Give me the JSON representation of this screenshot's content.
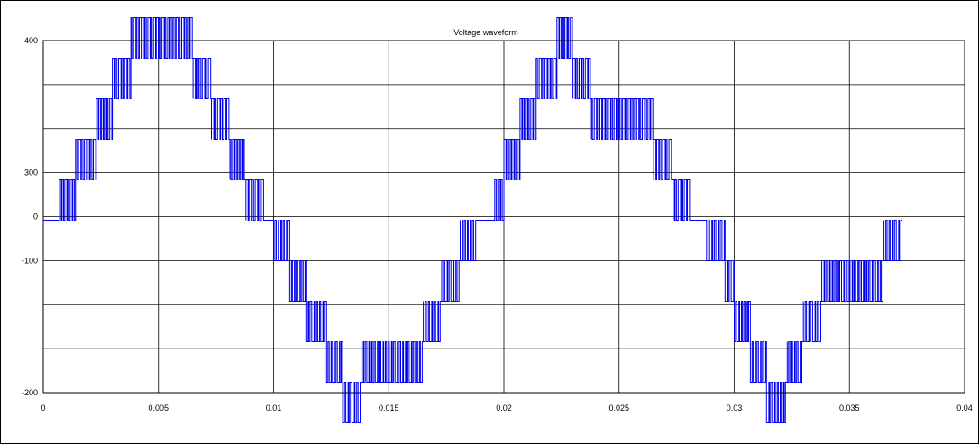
{
  "chart_data": {
    "type": "line",
    "title": "Voltage waveform",
    "xlabel": "",
    "ylabel": "",
    "xlim": [
      0,
      0.04
    ],
    "x_ticks": [
      "0",
      "0.005",
      "0.01",
      "0.015",
      "0.02",
      "0.025",
      "0.03",
      "0.035",
      "0.04"
    ],
    "y_ticks": [
      "400",
      "300",
      "0",
      "-100",
      "-200"
    ],
    "grid": true,
    "legend": "none",
    "colors": {
      "series": "#0000ee",
      "grid": "#000000",
      "frame": "#000000"
    },
    "series": [
      {
        "x": [
          0,
          0.0007,
          0.0014,
          0.0023,
          0.003,
          0.0038,
          0.0065,
          0.0073,
          0.0081,
          0.0088,
          0.0096,
          0.01,
          0.0107,
          0.0114,
          0.0123,
          0.013,
          0.0138,
          0.0165,
          0.0173,
          0.0181,
          0.0188,
          0.0196,
          0.02,
          0.0207,
          0.0214,
          0.0223,
          0.023,
          0.0238,
          0.0265,
          0.0273,
          0.0281,
          0.0288,
          0.0296,
          0.03,
          0.0307,
          0.0314,
          0.0323,
          0.033,
          0.0338,
          0.0365,
          0.0373,
          0.0381,
          0.0388,
          0.0396,
          0.04
        ],
        "level": [
          0,
          1,
          2,
          3,
          4,
          5,
          4,
          3,
          2,
          1,
          0,
          -1,
          -2,
          -3,
          -4,
          -5,
          -4,
          -3,
          -2,
          -1,
          0,
          1,
          2,
          3,
          4,
          5,
          4,
          3,
          2,
          1,
          0,
          -1,
          -2,
          -3,
          -4,
          -5,
          -4,
          -3,
          -2,
          -1,
          0,
          0,
          0,
          0,
          0
        ]
      }
    ]
  }
}
